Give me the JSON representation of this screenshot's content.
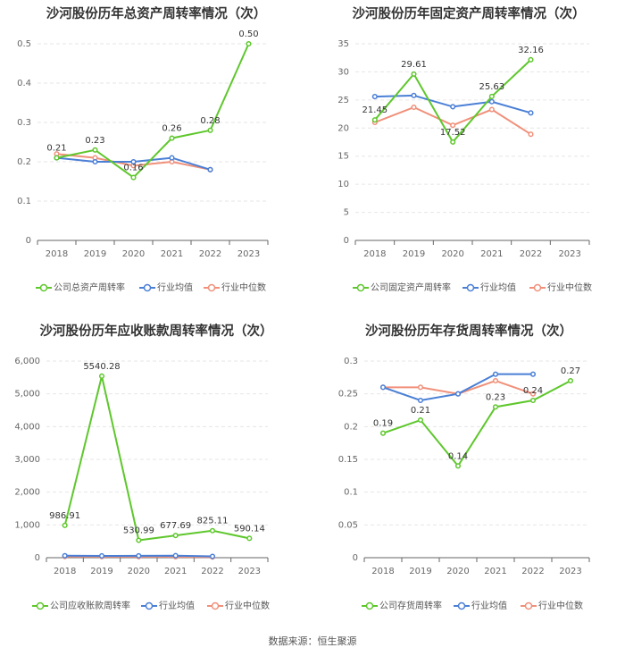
{
  "source_note": "数据来源：恒生聚源",
  "colors": {
    "company": "#5ec72c",
    "avg": "#4a7fd6",
    "median": "#f0907a",
    "grid": "#e6e6e6",
    "axis": "#666666"
  },
  "legend_labels": {
    "avg": "行业均值",
    "median": "行业中位数"
  },
  "chart_data": [
    {
      "type": "line",
      "title": "沙河股份历年总资产周转率情况（次）",
      "categories": [
        "2018",
        "2019",
        "2020",
        "2021",
        "2022",
        "2023"
      ],
      "yticks": [
        "0",
        "0.1",
        "0.2",
        "0.3",
        "0.4",
        "0.5"
      ],
      "ylim": [
        0,
        0.5
      ],
      "series": [
        {
          "name": "公司总资产周转率",
          "key": "company",
          "values": [
            0.21,
            0.23,
            0.16,
            0.26,
            0.28,
            0.5
          ],
          "labels": [
            "0.21",
            "0.23",
            "0.16",
            "0.26",
            "0.28",
            "0.50"
          ]
        },
        {
          "name": "行业均值",
          "key": "avg",
          "values": [
            0.21,
            0.2,
            0.2,
            0.21,
            0.18,
            null
          ]
        },
        {
          "name": "行业中位数",
          "key": "median",
          "values": [
            0.22,
            0.21,
            0.19,
            0.2,
            0.18,
            null
          ]
        }
      ]
    },
    {
      "type": "line",
      "title": "沙河股份历年固定资产周转率情况（次）",
      "categories": [
        "2018",
        "2019",
        "2020",
        "2021",
        "2022",
        "2023"
      ],
      "yticks": [
        "0",
        "5",
        "10",
        "15",
        "20",
        "25",
        "30",
        "35"
      ],
      "ylim": [
        0,
        35
      ],
      "series": [
        {
          "name": "公司固定资产周转率",
          "key": "company",
          "values": [
            21.45,
            29.61,
            17.52,
            25.63,
            32.16,
            null
          ],
          "labels": [
            "21.45",
            "29.61",
            "17.52",
            "25.63",
            "32.16",
            ""
          ]
        },
        {
          "name": "行业均值",
          "key": "avg",
          "values": [
            25.6,
            25.8,
            23.8,
            24.7,
            22.7,
            null
          ]
        },
        {
          "name": "行业中位数",
          "key": "median",
          "values": [
            21.0,
            23.7,
            20.5,
            23.3,
            18.9,
            null
          ]
        }
      ]
    },
    {
      "type": "line",
      "title": "沙河股份历年应收账款周转率情况（次）",
      "categories": [
        "2018",
        "2019",
        "2020",
        "2021",
        "2022",
        "2023"
      ],
      "yticks": [
        "0",
        "1,000",
        "2,000",
        "3,000",
        "4,000",
        "5,000",
        "6,000"
      ],
      "ylim": [
        0,
        6000
      ],
      "series": [
        {
          "name": "公司应收账款周转率",
          "key": "company",
          "values": [
            986.91,
            5540.28,
            530.99,
            677.69,
            825.11,
            590.14
          ],
          "labels": [
            "986.91",
            "5540.28",
            "530.99",
            "677.69",
            "825.11",
            "590.14"
          ]
        },
        {
          "name": "行业均值",
          "key": "avg",
          "values": [
            60,
            55,
            58,
            62,
            40,
            null
          ]
        },
        {
          "name": "行业中位数",
          "key": "median",
          "values": [
            35,
            32,
            30,
            28,
            20,
            null
          ]
        }
      ]
    },
    {
      "type": "line",
      "title": "沙河股份历年存货周转率情况（次）",
      "categories": [
        "2018",
        "2019",
        "2020",
        "2021",
        "2022",
        "2023"
      ],
      "yticks": [
        "0",
        "0.05",
        "0.1",
        "0.15",
        "0.2",
        "0.25",
        "0.3"
      ],
      "ylim": [
        0,
        0.3
      ],
      "series": [
        {
          "name": "公司存货周转率",
          "key": "company",
          "values": [
            0.19,
            0.21,
            0.14,
            0.23,
            0.24,
            0.27
          ],
          "labels": [
            "0.19",
            "0.21",
            "0.14",
            "0.23",
            "0.24",
            "0.27"
          ]
        },
        {
          "name": "行业均值",
          "key": "avg",
          "values": [
            0.26,
            0.24,
            0.25,
            0.28,
            0.28,
            null
          ]
        },
        {
          "name": "行业中位数",
          "key": "median",
          "values": [
            0.26,
            0.26,
            0.25,
            0.27,
            0.25,
            null
          ]
        }
      ]
    }
  ]
}
